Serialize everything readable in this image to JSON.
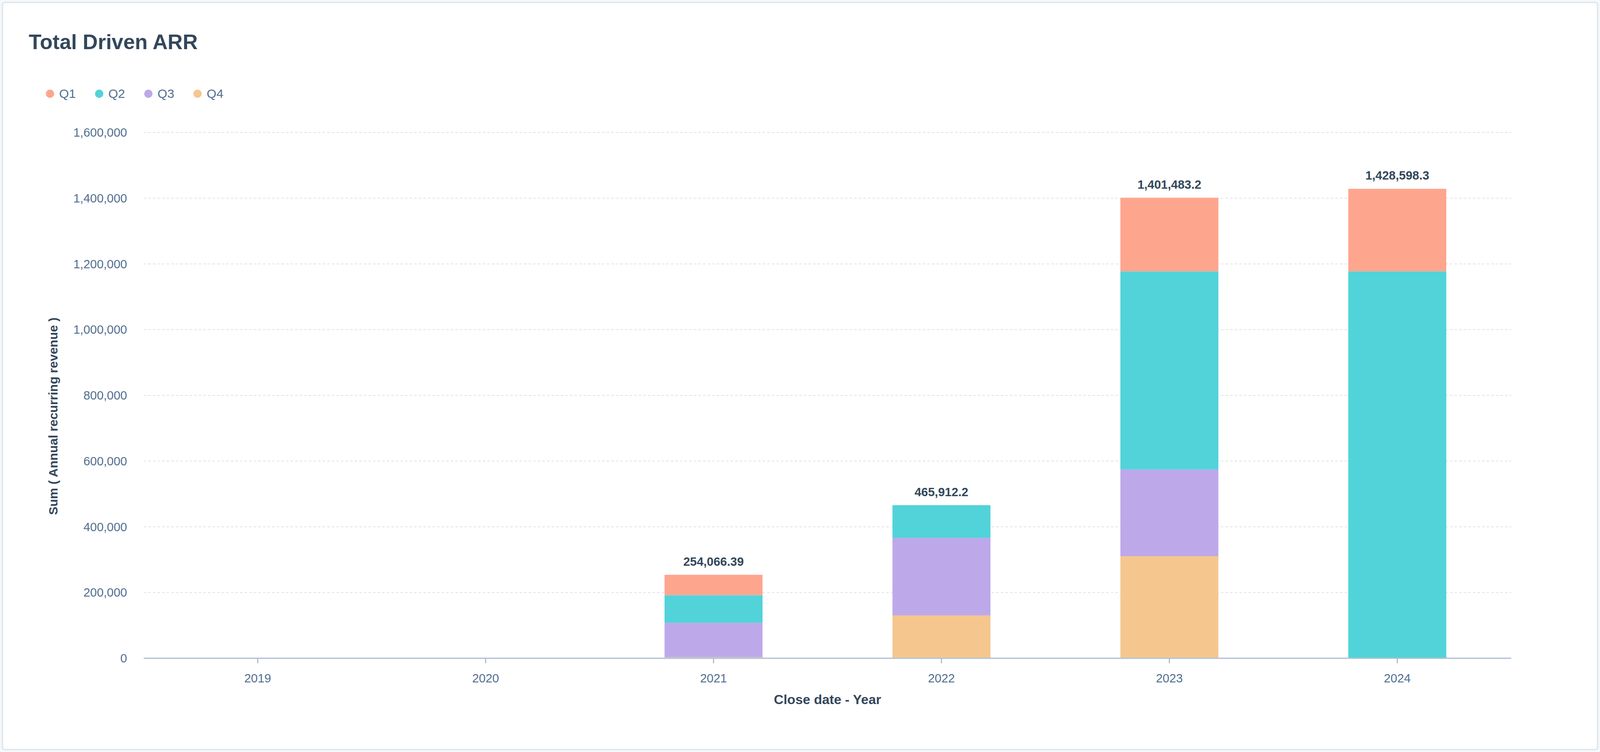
{
  "chart_data": {
    "type": "bar",
    "title": "Total Driven ARR",
    "stacked": true,
    "grid": true,
    "legend": "top-left",
    "data_labels": false,
    "x_label": "Close date - Year",
    "y_label": "Sum ( Annual recurring revenue )",
    "categories": [
      "2019",
      "2020",
      "2021",
      "2022",
      "2023",
      "2024"
    ],
    "series": [
      {
        "name": "Q1",
        "color": "#fea58e",
        "values": [
          null,
          null,
          62066.39,
          null,
          224183.2,
          251198.3
        ]
      },
      {
        "name": "Q2",
        "color": "#51d3d9",
        "values": [
          null,
          null,
          84000,
          99412.2,
          602700,
          1177400
        ]
      },
      {
        "name": "Q3",
        "color": "#bda9ea",
        "values": [
          null,
          null,
          105000,
          236000,
          264000,
          null
        ]
      },
      {
        "name": "Q4",
        "color": "#f5c78e",
        "values": [
          null,
          null,
          3000,
          130500,
          310600,
          null
        ]
      }
    ],
    "totals": [
      null,
      null,
      254066.39,
      465912.2,
      1401483.2,
      1428598.3
    ],
    "total_labels": [
      null,
      null,
      "254,066.39",
      "465,912.2",
      "1,401,483.2",
      "1,428,598.3"
    ],
    "ylim": [
      0,
      1600000
    ],
    "yticks": [
      0,
      {
        "value": 200000,
        "label": "200,000"
      },
      {
        "value": 400000,
        "label": "400,000"
      },
      {
        "value": 600000,
        "label": "600,000"
      },
      {
        "value": 800000,
        "label": "800,000"
      },
      {
        "value": 1000000,
        "label": "1,000,000"
      },
      {
        "value": 1200000,
        "label": "1,200,000"
      },
      {
        "value": 1400000,
        "label": "1,400,000"
      },
      {
        "value": 1600000,
        "label": "1,600,000"
      }
    ]
  }
}
